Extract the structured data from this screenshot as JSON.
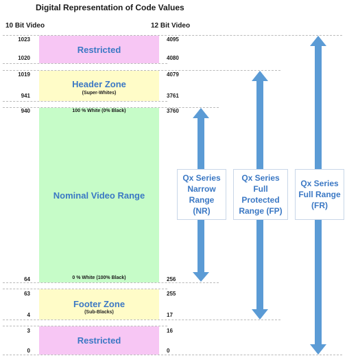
{
  "title": "Digital Representation of Code Values",
  "columns": {
    "left": "10 Bit Video",
    "right": "12 Bit Video"
  },
  "bands": [
    {
      "id": "restricted-top",
      "title": "Restricted",
      "subtitle": "",
      "color": "#f7c6f4",
      "left_top": "1023",
      "left_bottom": "1020",
      "right_top": "4095",
      "right_bottom": "4080"
    },
    {
      "id": "header-zone",
      "title": "Header Zone",
      "subtitle": "(Super-Whites)",
      "color": "#fffcc8",
      "left_top": "1019",
      "left_bottom": "941",
      "right_top": "4079",
      "right_bottom": "3761"
    },
    {
      "id": "nominal",
      "title": "Nominal Video Range",
      "subtitle": "",
      "color": "#c6fcc8",
      "left_top": "940",
      "left_bottom": "64",
      "right_top": "3760",
      "right_bottom": "256",
      "top_note": "100 % White (0% Black)",
      "bottom_note": "0 % White (100% Black)"
    },
    {
      "id": "footer-zone",
      "title": "Footer Zone",
      "subtitle": "(Sub-Blacks)",
      "color": "#fffcc8",
      "left_top": "63",
      "left_bottom": "4",
      "right_top": "255",
      "right_bottom": "17"
    },
    {
      "id": "restricted-bottom",
      "title": "Restricted",
      "subtitle": "",
      "color": "#f7c6f4",
      "left_top": "3",
      "left_bottom": "0",
      "right_top": "16",
      "right_bottom": "0"
    }
  ],
  "ranges": [
    {
      "id": "nr",
      "label": "Qx Series\nNarrow\nRange\n(NR)"
    },
    {
      "id": "fp",
      "label": "Qx Series\nFull\nProtected\nRange (FP)"
    },
    {
      "id": "fr",
      "label": "Qx Series\nFull Range\n(FR)"
    }
  ],
  "colors": {
    "arrow": "#5b9bd5",
    "accent_text": "#3b78c4"
  }
}
